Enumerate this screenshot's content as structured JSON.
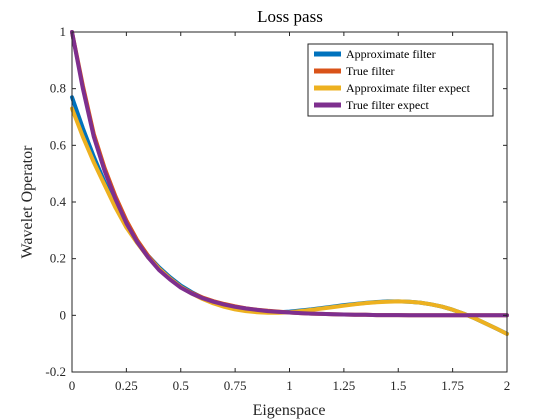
{
  "chart_data": {
    "type": "line",
    "title": "Loss pass",
    "xlabel": "Eigenspace",
    "ylabel": "Wavelet Operator",
    "xlim": [
      0,
      2
    ],
    "ylim": [
      -0.2,
      1
    ],
    "xticks": [
      0,
      0.25,
      0.5,
      0.75,
      1,
      1.25,
      1.5,
      1.75,
      2
    ],
    "xtick_labels": [
      "0",
      "0.25",
      "0.5",
      "0.75",
      "1",
      "1.25",
      "1.5",
      "1.75",
      "2"
    ],
    "yticks": [
      -0.2,
      0,
      0.2,
      0.4,
      0.6,
      0.8,
      1
    ],
    "ytick_labels": [
      "-0.2",
      "0",
      "0.2",
      "0.4",
      "0.6",
      "0.8",
      "1"
    ],
    "grid": false,
    "legend_position": "top-right",
    "x": [
      0,
      0.05,
      0.1,
      0.15,
      0.2,
      0.25,
      0.3,
      0.35,
      0.4,
      0.45,
      0.5,
      0.55,
      0.6,
      0.65,
      0.7,
      0.75,
      0.8,
      0.85,
      0.9,
      0.95,
      1,
      1.05,
      1.1,
      1.15,
      1.2,
      1.25,
      1.3,
      1.35,
      1.4,
      1.45,
      1.5,
      1.55,
      1.6,
      1.65,
      1.7,
      1.75,
      1.8,
      1.85,
      1.9,
      1.95,
      2
    ],
    "series": [
      {
        "name": "Approximate filter",
        "color": "#0072BD",
        "values": [
          0.77,
          0.66,
          0.56,
          0.47,
          0.39,
          0.32,
          0.26,
          0.21,
          0.17,
          0.135,
          0.105,
          0.082,
          0.062,
          0.046,
          0.033,
          0.024,
          0.017,
          0.013,
          0.011,
          0.011,
          0.013,
          0.017,
          0.021,
          0.026,
          0.031,
          0.036,
          0.04,
          0.044,
          0.047,
          0.049,
          0.049,
          0.048,
          0.045,
          0.039,
          0.031,
          0.02,
          0.006,
          -0.01,
          -0.028,
          -0.046,
          -0.065
        ]
      },
      {
        "name": "True filter",
        "color": "#D95319",
        "values": [
          1.0,
          0.81,
          0.64,
          0.52,
          0.42,
          0.335,
          0.265,
          0.21,
          0.165,
          0.13,
          0.1,
          0.079,
          0.063,
          0.05,
          0.04,
          0.032,
          0.025,
          0.02,
          0.016,
          0.013,
          0.01,
          0.008,
          0.006,
          0.005,
          0.004,
          0.003,
          0.002,
          0.002,
          0.001,
          0.001,
          0.001,
          0.0,
          0.0,
          0.0,
          0.0,
          0.0,
          0.0,
          0.0,
          0.0,
          0.0,
          0.0
        ]
      },
      {
        "name": "Approximate filter expect",
        "color": "#EDB120",
        "values": [
          0.73,
          0.63,
          0.54,
          0.46,
          0.38,
          0.31,
          0.255,
          0.205,
          0.165,
          0.13,
          0.1,
          0.077,
          0.058,
          0.042,
          0.03,
          0.021,
          0.015,
          0.011,
          0.009,
          0.009,
          0.011,
          0.015,
          0.019,
          0.024,
          0.029,
          0.034,
          0.039,
          0.043,
          0.046,
          0.048,
          0.049,
          0.048,
          0.045,
          0.039,
          0.031,
          0.02,
          0.006,
          -0.01,
          -0.028,
          -0.046,
          -0.066
        ]
      },
      {
        "name": "True filter expect",
        "color": "#7E2F8E",
        "values": [
          1.0,
          0.8,
          0.63,
          0.51,
          0.41,
          0.325,
          0.258,
          0.205,
          0.16,
          0.127,
          0.098,
          0.077,
          0.061,
          0.048,
          0.038,
          0.03,
          0.024,
          0.019,
          0.015,
          0.012,
          0.01,
          0.008,
          0.006,
          0.005,
          0.004,
          0.003,
          0.002,
          0.002,
          0.001,
          0.001,
          0.001,
          0.0,
          0.0,
          0.0,
          0.0,
          0.0,
          0.0,
          0.0,
          0.0,
          0.0,
          0.0
        ]
      }
    ]
  }
}
